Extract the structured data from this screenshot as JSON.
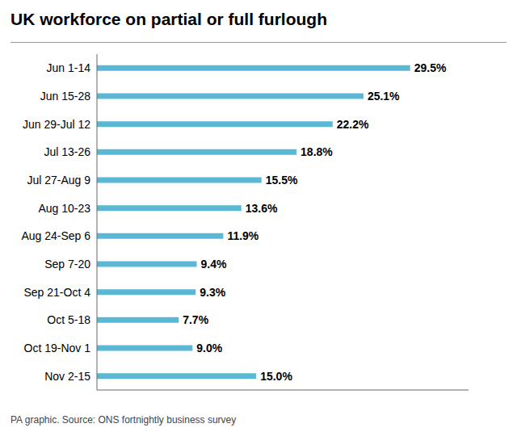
{
  "chart_data": {
    "type": "bar",
    "title": "UK workforce on partial or full furlough",
    "categories": [
      "Jun 1-14",
      "Jun 15-28",
      "Jun 29-Jul 12",
      "Jul 13-26",
      "Jul 27-Aug 9",
      "Aug 10-23",
      "Aug 24-Sep 6",
      "Sep 7-20",
      "Sep 21-Oct 4",
      "Oct 5-18",
      "Oct 19-Nov 1",
      "Nov 2-15"
    ],
    "values": [
      29.5,
      25.1,
      22.2,
      18.8,
      15.5,
      13.6,
      11.9,
      9.4,
      9.3,
      7.7,
      9.0,
      15.0
    ],
    "value_labels": [
      "29.5%",
      "25.1%",
      "22.2%",
      "18.8%",
      "15.5%",
      "13.6%",
      "11.9%",
      "9.4%",
      "9.3%",
      "7.7%",
      "9.0%",
      "15.0%"
    ],
    "color": "#5bb8d4",
    "orientation": "horizontal",
    "xlim": [
      0,
      35
    ],
    "grid": false,
    "data_labels": true,
    "tick_labels": "y",
    "annotations": [
      "PA graphic. Source: ONS fortnightly business survey"
    ]
  }
}
